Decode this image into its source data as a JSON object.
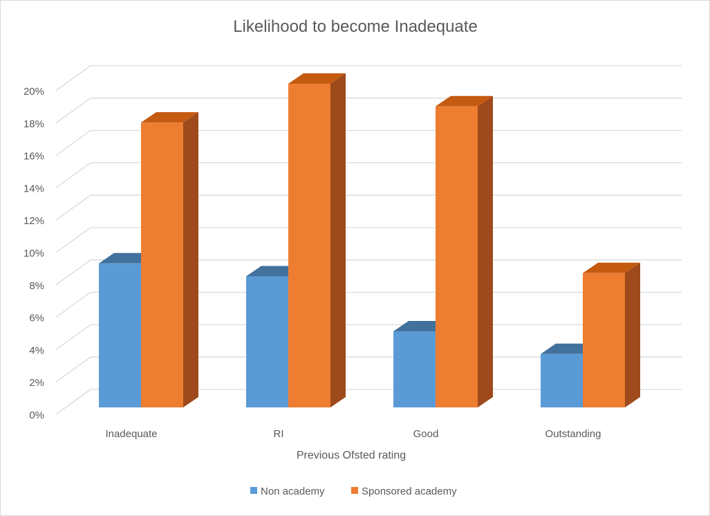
{
  "chart_data": {
    "type": "bar",
    "title": "Likelihood to become Inadequate",
    "xlabel": "Previous Ofsted rating",
    "ylabel": "",
    "categories": [
      "Inadequate",
      "RI",
      "Good",
      "Outstanding"
    ],
    "y_ticks": [
      "0%",
      "2%",
      "4%",
      "6%",
      "8%",
      "10%",
      "12%",
      "14%",
      "16%",
      "18%",
      "20%"
    ],
    "ylim": [
      0,
      20
    ],
    "grid": true,
    "legend_position": "bottom",
    "series": [
      {
        "name": "Non academy",
        "values": [
          8.9,
          8.1,
          4.7,
          3.3
        ],
        "color": "#5b9bd5",
        "top_color": "#41719c",
        "side_color": "#2e5f8c"
      },
      {
        "name": "Sponsored academy",
        "values": [
          17.6,
          20.0,
          18.6,
          8.3
        ],
        "color": "#ed7d31",
        "top_color": "#c55a11",
        "side_color": "#9e4a1c"
      }
    ]
  }
}
